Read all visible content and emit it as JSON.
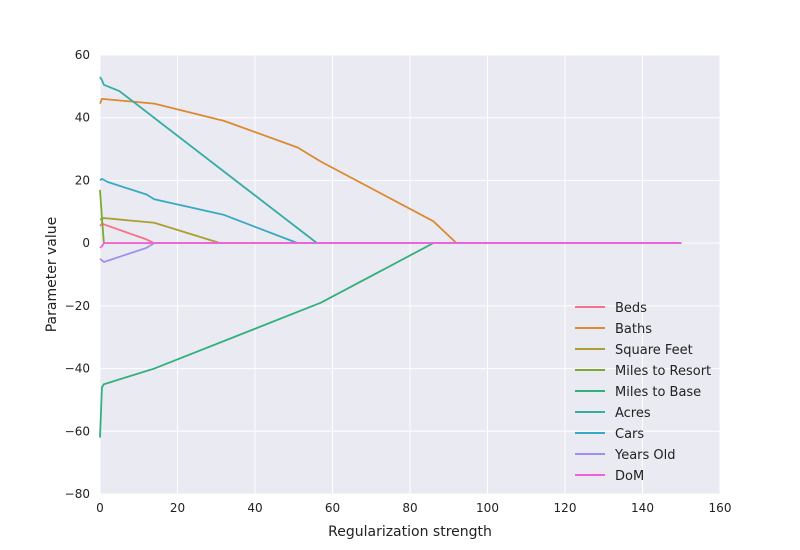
{
  "chart_data": {
    "type": "line",
    "title": "",
    "xlabel": "Regularization strength",
    "ylabel": "Parameter value",
    "xlim": [
      0,
      160
    ],
    "ylim": [
      -80,
      60
    ],
    "xticks": [
      0,
      20,
      40,
      60,
      80,
      100,
      120,
      140,
      160
    ],
    "yticks": [
      -80,
      -60,
      -40,
      -20,
      0,
      20,
      40,
      60
    ],
    "grid": true,
    "background": "#eaeaf2",
    "legend_position": "lower-right",
    "series": [
      {
        "name": "Beds",
        "color": "#f77189",
        "points": [
          [
            0,
            5.5
          ],
          [
            0.5,
            6.2
          ],
          [
            12,
            1.2
          ],
          [
            14,
            0
          ],
          [
            150,
            0
          ]
        ]
      },
      {
        "name": "Baths",
        "color": "#dc8932",
        "points": [
          [
            0,
            44.5
          ],
          [
            0.5,
            46
          ],
          [
            14,
            44.5
          ],
          [
            32,
            39
          ],
          [
            51,
            30.5
          ],
          [
            57,
            26
          ],
          [
            86,
            7
          ],
          [
            92,
            0
          ],
          [
            150,
            0
          ]
        ]
      },
      {
        "name": "Square Feet",
        "color": "#ae9d31",
        "points": [
          [
            0,
            7.5
          ],
          [
            1,
            8
          ],
          [
            14,
            6.5
          ],
          [
            31,
            0
          ],
          [
            150,
            0
          ]
        ]
      },
      {
        "name": "Miles to Resort",
        "color": "#77ab31",
        "points": [
          [
            0,
            17
          ],
          [
            0.5,
            8
          ],
          [
            1,
            0
          ],
          [
            150,
            0
          ]
        ]
      },
      {
        "name": "Miles to Base",
        "color": "#33b07a",
        "points": [
          [
            0,
            -62
          ],
          [
            0.5,
            -46
          ],
          [
            1,
            -45
          ],
          [
            14,
            -40
          ],
          [
            57,
            -19
          ],
          [
            86,
            0
          ],
          [
            150,
            0
          ]
        ]
      },
      {
        "name": "Acres",
        "color": "#36ada4",
        "points": [
          [
            0,
            53
          ],
          [
            0.5,
            52
          ],
          [
            1,
            50.5
          ],
          [
            5,
            48.5
          ],
          [
            56,
            0
          ],
          [
            150,
            0
          ]
        ]
      },
      {
        "name": "Cars",
        "color": "#38a9c5",
        "points": [
          [
            0,
            20
          ],
          [
            0.5,
            20.5
          ],
          [
            2,
            19.5
          ],
          [
            12,
            15.5
          ],
          [
            14,
            14
          ],
          [
            32,
            9
          ],
          [
            51,
            0
          ],
          [
            150,
            0
          ]
        ]
      },
      {
        "name": "Years Old",
        "color": "#a48cf4",
        "points": [
          [
            0,
            -5
          ],
          [
            0.5,
            -5.5
          ],
          [
            1,
            -6
          ],
          [
            12,
            -1.5
          ],
          [
            14,
            0
          ],
          [
            150,
            0
          ]
        ]
      },
      {
        "name": "DoM",
        "color": "#f461dd",
        "points": [
          [
            0,
            -1.5
          ],
          [
            0.5,
            -1
          ],
          [
            1,
            0
          ],
          [
            150,
            0
          ]
        ]
      }
    ]
  }
}
